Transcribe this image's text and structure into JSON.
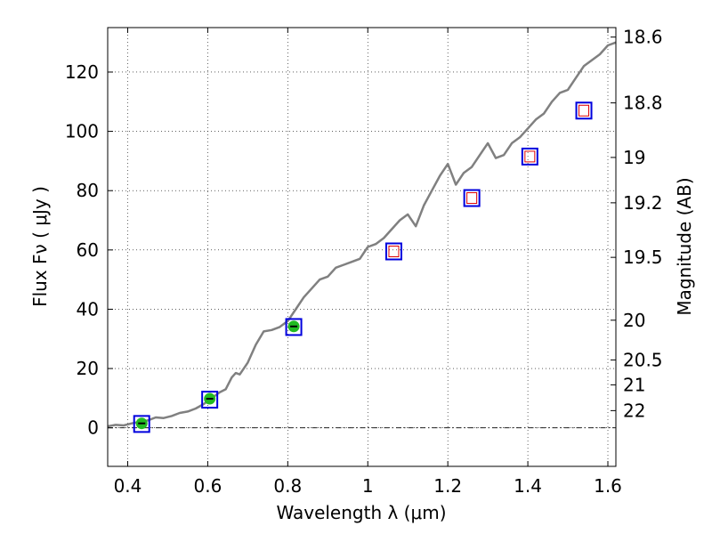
{
  "chart_data": {
    "type": "line",
    "xlabel": "Wavelength  λ (μm)",
    "ylabel": "Flux  Fν  ( μJy )",
    "y2label": "Magnitude (AB)",
    "xlim": [
      0.35,
      1.62
    ],
    "ylim": [
      -13,
      135
    ],
    "grid": true,
    "x_ticks": [
      0.4,
      0.6,
      0.8,
      1.0,
      1.2,
      1.4,
      1.6
    ],
    "x_tick_labels": [
      "0.4",
      "0.6",
      "0.8",
      "1",
      "1.2",
      "1.4",
      "1.6"
    ],
    "y_ticks": [
      0,
      20,
      40,
      60,
      80,
      100,
      120
    ],
    "y_tick_labels": [
      "0",
      "20",
      "40",
      "60",
      "80",
      "100",
      "120"
    ],
    "y2_ticks": [
      {
        "label": "18.6",
        "flux": 131.8
      },
      {
        "label": "18.8",
        "flux": 109.6
      },
      {
        "label": "19",
        "flux": 91.2
      },
      {
        "label": "19.2",
        "flux": 75.9
      },
      {
        "label": "19.5",
        "flux": 57.5
      },
      {
        "label": "20",
        "flux": 36.3
      },
      {
        "label": "20.5",
        "flux": 22.9
      },
      {
        "label": "21",
        "flux": 14.5
      },
      {
        "label": "22",
        "flux": 5.8
      }
    ],
    "colors": {
      "spectrum": "#808080",
      "photometry_fill": "#22bb22",
      "model_box": "#0000dd",
      "model_inner": "#dd0000"
    },
    "series": [
      {
        "name": "spectrum",
        "style": "line",
        "x": [
          0.35,
          0.37,
          0.39,
          0.41,
          0.43,
          0.45,
          0.47,
          0.49,
          0.51,
          0.53,
          0.55,
          0.57,
          0.59,
          0.61,
          0.63,
          0.645,
          0.66,
          0.67,
          0.68,
          0.7,
          0.72,
          0.74,
          0.76,
          0.78,
          0.8,
          0.82,
          0.84,
          0.86,
          0.88,
          0.9,
          0.92,
          0.94,
          0.96,
          0.98,
          1.0,
          1.02,
          1.04,
          1.06,
          1.08,
          1.1,
          1.12,
          1.14,
          1.16,
          1.18,
          1.2,
          1.22,
          1.24,
          1.26,
          1.28,
          1.3,
          1.32,
          1.34,
          1.36,
          1.38,
          1.4,
          1.42,
          1.44,
          1.46,
          1.48,
          1.5,
          1.52,
          1.54,
          1.56,
          1.58,
          1.6,
          1.62
        ],
        "y": [
          0.5,
          1.0,
          0.8,
          1.5,
          2.0,
          2.5,
          3.5,
          3.3,
          4.0,
          5.0,
          5.5,
          6.5,
          8.0,
          10.0,
          12.0,
          13.0,
          17.0,
          18.5,
          18.0,
          22.0,
          28.0,
          32.5,
          33.0,
          34.0,
          36.0,
          40.0,
          44.0,
          47.0,
          50.0,
          51.0,
          54.0,
          55.0,
          56.0,
          57.0,
          61.0,
          62.0,
          64.0,
          67.0,
          70.0,
          72.0,
          68.0,
          75.0,
          80.0,
          85.0,
          89.0,
          82.0,
          86.0,
          88.0,
          92.0,
          96.0,
          91.0,
          92.0,
          96.0,
          98.0,
          101.0,
          104.0,
          106.0,
          110.0,
          113.0,
          114.0,
          118.0,
          122.0,
          124.0,
          126.0,
          129.0,
          130.0
        ]
      },
      {
        "name": "photometry",
        "style": "points",
        "x": [
          0.435,
          0.605,
          0.815
        ],
        "y": [
          1.5,
          9.8,
          34.2
        ],
        "yerr": [
          0.7,
          0.9,
          1.8
        ]
      },
      {
        "name": "model",
        "style": "squares",
        "x": [
          0.435,
          0.605,
          0.815,
          1.065,
          1.26,
          1.405,
          1.54
        ],
        "y": [
          1.3,
          9.5,
          34.0,
          59.5,
          77.5,
          91.5,
          107.0
        ]
      }
    ]
  }
}
